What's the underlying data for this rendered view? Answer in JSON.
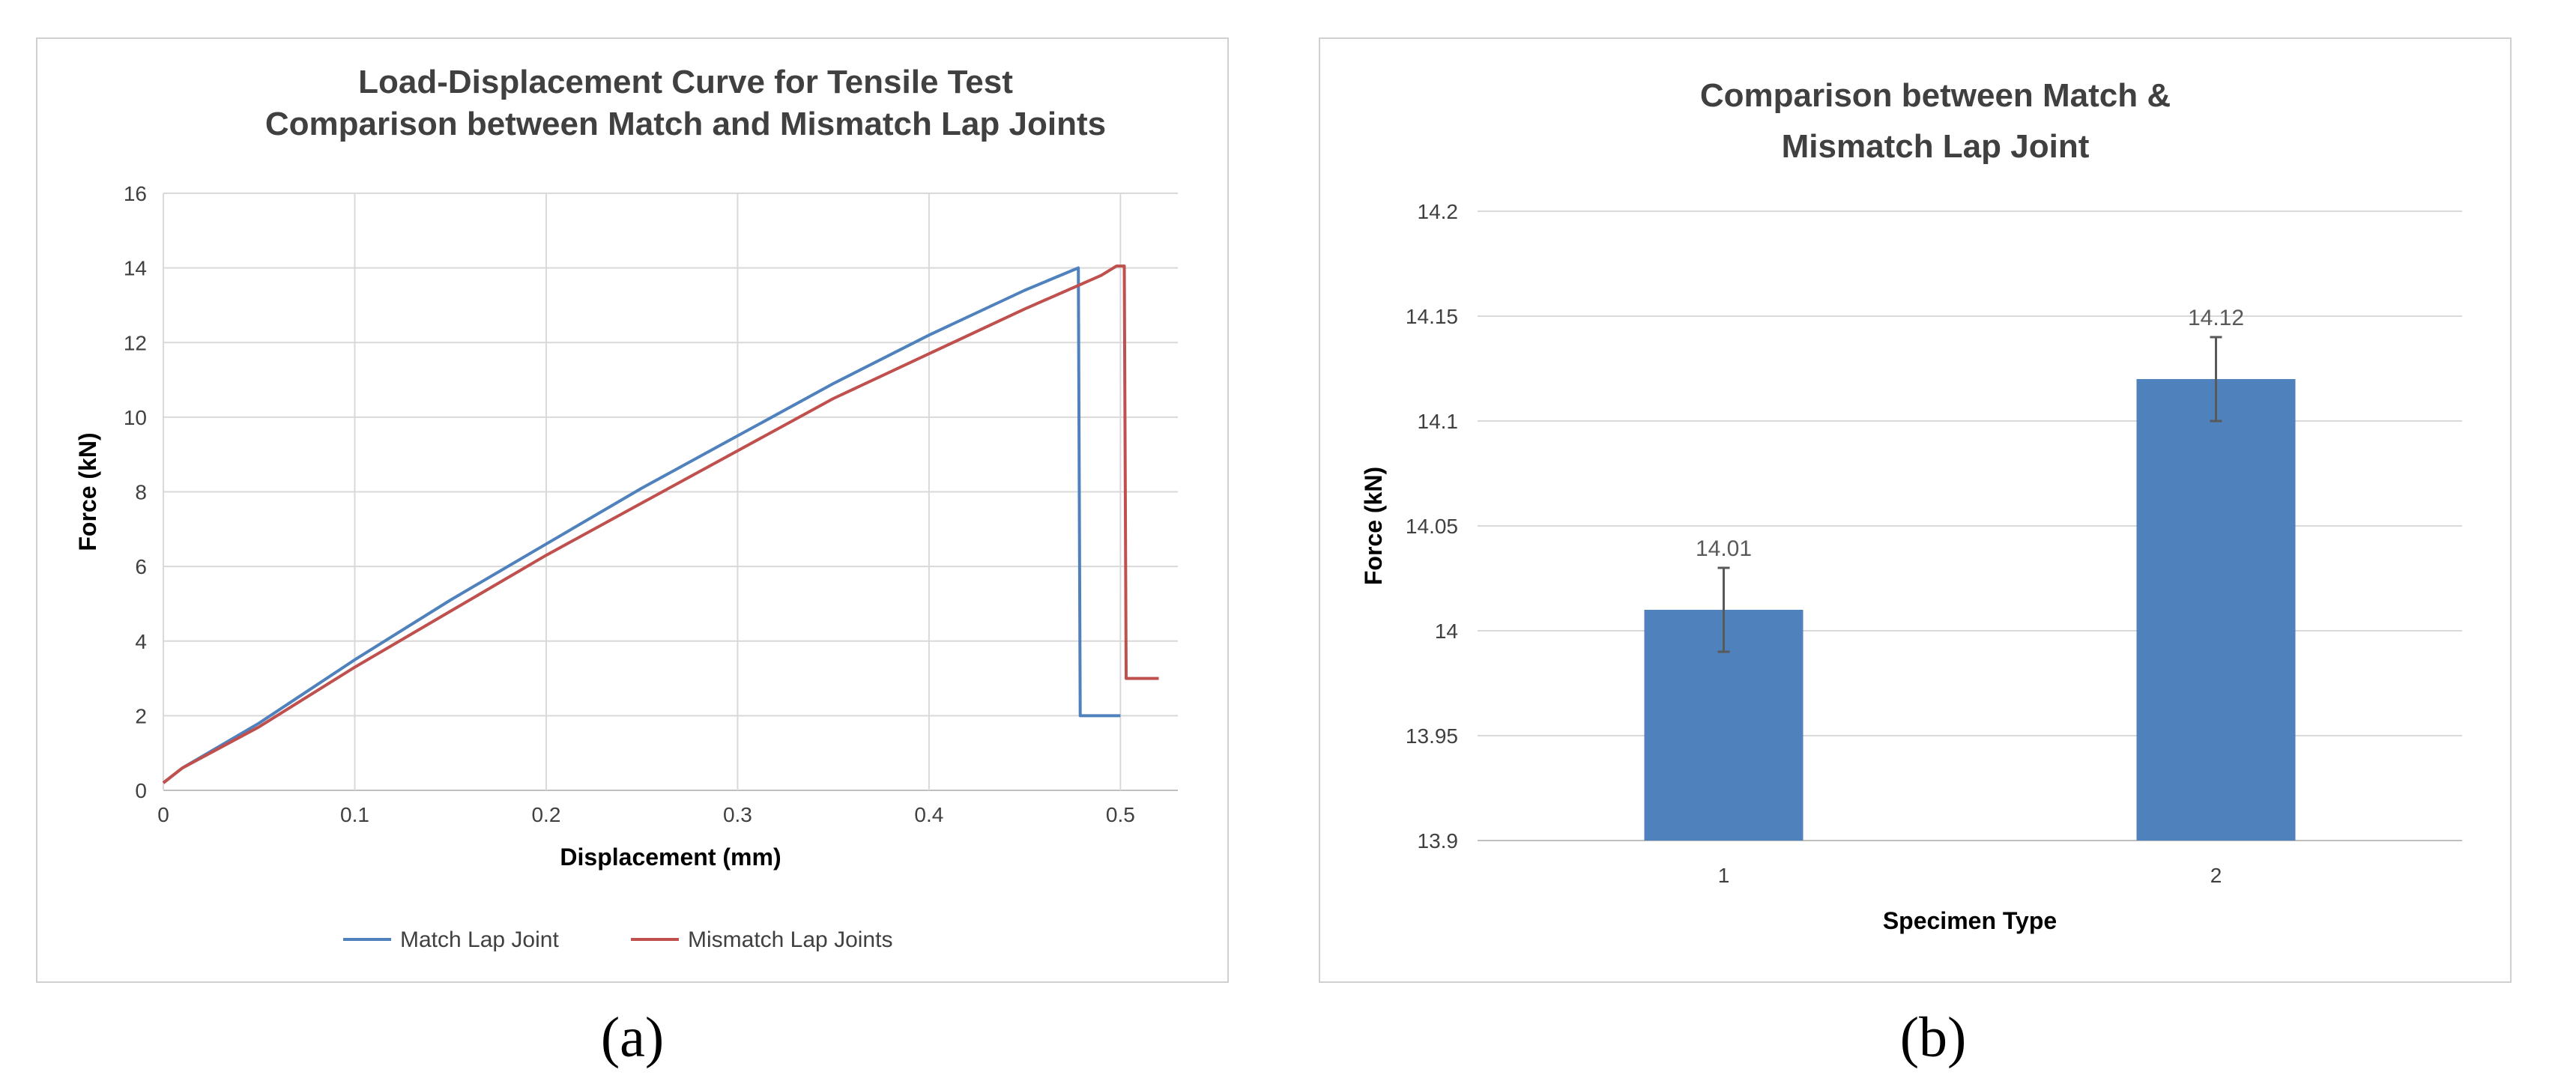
{
  "figure_labels": {
    "a": "(a)",
    "b": "(b)"
  },
  "colors": {
    "match": "#4f81bd",
    "mismatch": "#c0504d",
    "bar": "#4f81bd",
    "grid": "#d9d9d9",
    "axis": "#bfbfbf",
    "errbar": "#595959"
  },
  "chart_data": [
    {
      "type": "line",
      "title": [
        "Load-Displacement Curve for Tensile Test",
        "Comparison between Match and Mismatch Lap Joints"
      ],
      "xlabel": "Displacement (mm)",
      "ylabel": "Force (kN)",
      "xlim": [
        0,
        0.53
      ],
      "ylim": [
        0,
        16
      ],
      "xticks": [
        "0",
        "0.1",
        "0.2",
        "0.3",
        "0.4",
        "0.5"
      ],
      "yticks": [
        "0",
        "2",
        "4",
        "6",
        "8",
        "10",
        "12",
        "14",
        "16"
      ],
      "grid": true,
      "legend_position": "bottom",
      "series": [
        {
          "name": "Match Lap Joint",
          "x": [
            0,
            0.01,
            0.05,
            0.1,
            0.15,
            0.2,
            0.25,
            0.3,
            0.35,
            0.4,
            0.45,
            0.478,
            0.479,
            0.5
          ],
          "y": [
            0.2,
            0.6,
            1.8,
            3.5,
            5.1,
            6.6,
            8.1,
            9.5,
            10.9,
            12.2,
            13.4,
            14.0,
            2.0,
            2.0
          ]
        },
        {
          "name": "Mismatch Lap Joints",
          "x": [
            0,
            0.01,
            0.05,
            0.1,
            0.15,
            0.2,
            0.25,
            0.3,
            0.35,
            0.4,
            0.45,
            0.49,
            0.498,
            0.502,
            0.503,
            0.52
          ],
          "y": [
            0.2,
            0.6,
            1.7,
            3.3,
            4.8,
            6.3,
            7.7,
            9.1,
            10.5,
            11.7,
            12.9,
            13.8,
            14.05,
            14.05,
            3.0,
            3.0
          ]
        }
      ]
    },
    {
      "type": "bar",
      "title": [
        "Comparison between Match &",
        "Mismatch Lap Joint"
      ],
      "xlabel": "Specimen Type",
      "ylabel": "Force (kN)",
      "ylim": [
        13.9,
        14.2
      ],
      "yticks": [
        "13.9",
        "13.95",
        "14",
        "14.05",
        "14.1",
        "14.15",
        "14.2"
      ],
      "grid": true,
      "categories": [
        "1",
        "2"
      ],
      "values": [
        14.01,
        14.12
      ],
      "data_labels": [
        "14.01",
        "14.12"
      ],
      "error": [
        0.02,
        0.02
      ]
    }
  ]
}
